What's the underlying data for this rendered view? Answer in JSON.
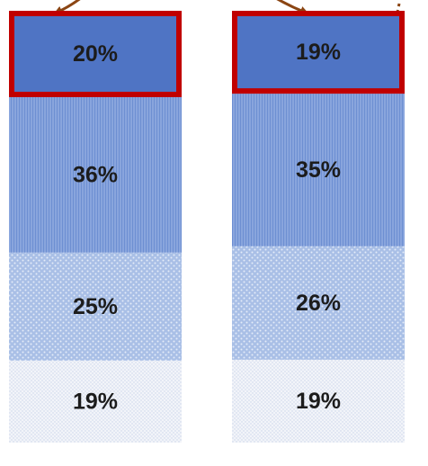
{
  "chart_data": {
    "type": "bar",
    "stacked": true,
    "orientation": "vertical",
    "title": "",
    "xlabel": "",
    "ylabel": "",
    "ylim": [
      0,
      100
    ],
    "categories": [
      "",
      ""
    ],
    "series": [
      {
        "values": [
          19,
          19
        ],
        "labels": [
          "19%",
          "19%"
        ],
        "color": "#eef1f8",
        "pattern": "fine-dots"
      },
      {
        "values": [
          25,
          26
        ],
        "labels": [
          "25%",
          "26%"
        ],
        "color": "#a6bce4",
        "pattern": "dots"
      },
      {
        "values": [
          36,
          35
        ],
        "labels": [
          "36%",
          "35%"
        ],
        "color": "#7f9ddb",
        "pattern": "vertical-lines"
      },
      {
        "values": [
          20,
          19
        ],
        "labels": [
          "20%",
          "19%"
        ],
        "color": "#4f74c4",
        "pattern": "solid"
      }
    ],
    "highlight": {
      "series_index": 3,
      "outline_color": "#c00000"
    },
    "connector_color": "#8b4513",
    "grid": false,
    "legend": "none"
  }
}
